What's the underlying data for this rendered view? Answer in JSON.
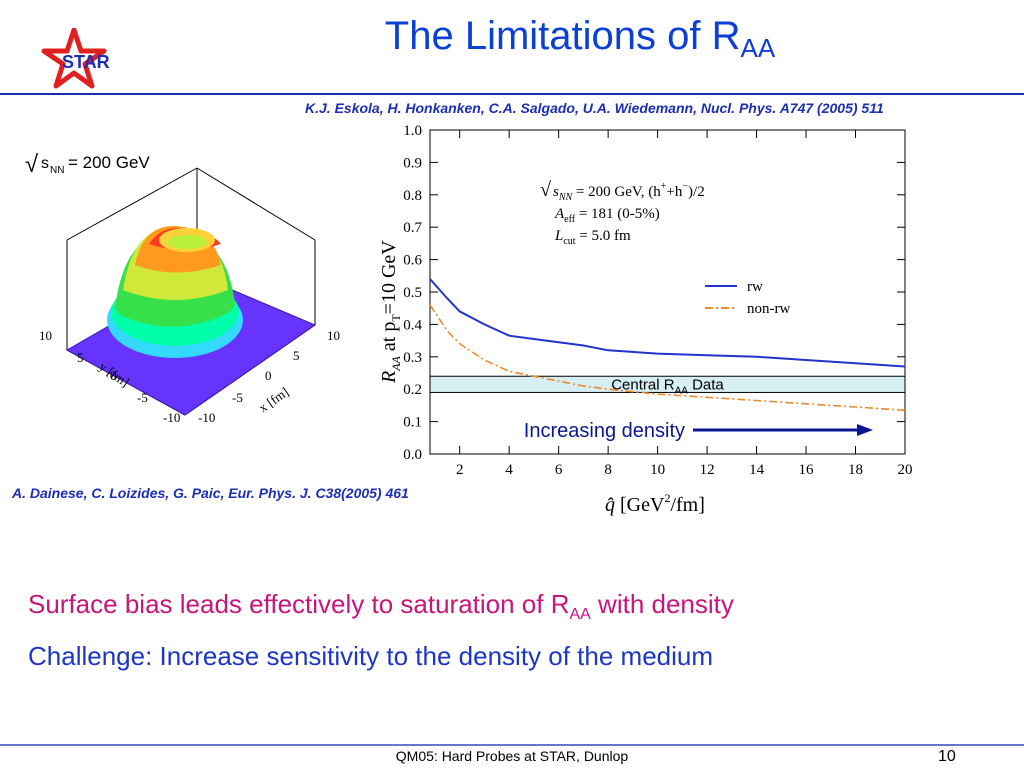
{
  "slide": {
    "title_main": "The Limitations of R",
    "title_sub": "AA",
    "logo_text": "STAR",
    "ref_top": "K.J. Eskola, H. Honkanken, C.A. Salgado, U.A. Wiedemann, Nucl. Phys. A747 (2005) 511",
    "ref_bottom": "A. Dainese, C. Loizides, G. Paic, Eur. Phys. J. C38(2005) 461",
    "line1_pre": "Surface bias leads effectively to saturation of R",
    "line1_sub": "AA",
    "line1_post": " with density",
    "line2": "Challenge: Increase sensitivity to the density of the medium",
    "footer": "QM05: Hard Probes at STAR, Dunlop",
    "page_number": "10"
  },
  "surface_plot": {
    "energy_label_sqrt": "√",
    "energy_label_s": "s",
    "energy_label_sub": "NN",
    "energy_label_rest": " = 200 GeV",
    "y_axis_label": "y [fm]",
    "x_axis_label": "x [fm]",
    "y_ticks": [
      "10",
      "5",
      "0",
      "-5",
      "-10"
    ],
    "x_ticks": [
      "-10",
      "-5",
      "0",
      "5",
      "10"
    ]
  },
  "chart_data": {
    "type": "line",
    "x_label_main": "q̂",
    "x_label_unit": " [GeV",
    "x_label_sup": "2",
    "x_label_tail": "/fm]",
    "y_label_r": "R",
    "y_label_sub": "AA",
    "y_label_at": " at p",
    "y_label_t": "T",
    "y_label_tail": "=10 GeV",
    "xlim": [
      0.8,
      20
    ],
    "ylim": [
      0.0,
      1.0
    ],
    "x_ticks": [
      2,
      4,
      6,
      8,
      10,
      12,
      14,
      16,
      18,
      20
    ],
    "y_ticks": [
      "0.0",
      "0.1",
      "0.2",
      "0.3",
      "0.4",
      "0.5",
      "0.6",
      "0.7",
      "0.8",
      "0.9",
      "1.0"
    ],
    "annotation": {
      "line1_prefix": "s",
      "line1_sub": "NN",
      "line1_rest": " = 200 GeV, (h",
      "line1_sup_plus": "+",
      "line1_mid": "+h",
      "line1_sup_minus": "−",
      "line1_end": ")/2",
      "line2_a": "A",
      "line2_sub": "eff",
      "line2_rest": " = 181 (0-5%)",
      "line3_l": "L",
      "line3_sub": "cut",
      "line3_rest": " = 5.0 fm"
    },
    "series": [
      {
        "name": "rw",
        "color": "#2233cc",
        "style": "solid",
        "x": [
          0.8,
          1.5,
          2,
          3,
          4,
          5,
          6,
          7,
          8,
          10,
          12,
          14,
          16,
          18,
          20
        ],
        "y": [
          0.54,
          0.48,
          0.44,
          0.4,
          0.365,
          0.355,
          0.345,
          0.335,
          0.32,
          0.31,
          0.305,
          0.3,
          0.29,
          0.28,
          0.27
        ]
      },
      {
        "name": "non-rw",
        "color": "#e98a2b",
        "style": "dashdot",
        "x": [
          0.8,
          1.5,
          2,
          3,
          4,
          5,
          6,
          7,
          8,
          10,
          12,
          14,
          16,
          18,
          20
        ],
        "y": [
          0.46,
          0.38,
          0.34,
          0.29,
          0.255,
          0.24,
          0.225,
          0.21,
          0.2,
          0.185,
          0.175,
          0.165,
          0.155,
          0.145,
          0.135
        ]
      }
    ],
    "band": {
      "label_pre": "Central R",
      "label_sub": "AA",
      "label_post": " Data",
      "y_low": 0.19,
      "y_high": 0.24,
      "color": "#d7eef2"
    },
    "arrow_label": "Increasing density",
    "arrow_color": "#0a1590"
  }
}
